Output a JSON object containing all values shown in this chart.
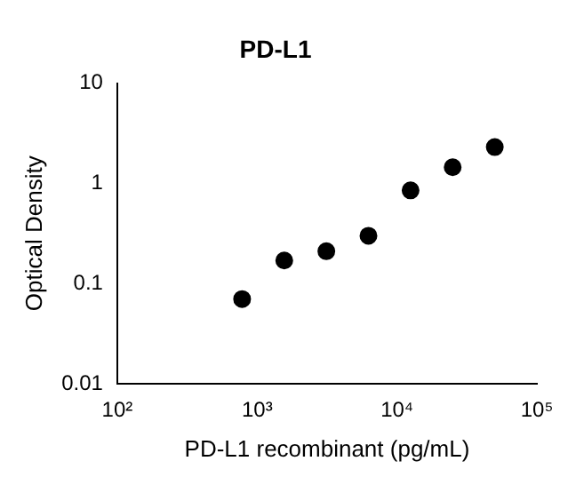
{
  "chart_data": {
    "type": "scatter",
    "title": "PD-L1",
    "xlabel": "PD-L1 recombinant (pg/mL)",
    "ylabel": "Optical Density",
    "x": [
      781,
      1563,
      3125,
      6250,
      12500,
      25000,
      50000
    ],
    "series": [
      {
        "color": "#000000",
        "values": [
          0.07,
          0.17,
          0.21,
          0.3,
          0.85,
          1.45,
          2.3
        ]
      }
    ],
    "log": "xy",
    "marker": "circle",
    "grid": false,
    "legend": false,
    "xlim": [
      100,
      100000
    ],
    "xticks": [
      {
        "value": 100,
        "label": "10²"
      },
      {
        "value": 1000,
        "label": "10³"
      },
      {
        "value": 10000,
        "label": "10⁴"
      },
      {
        "value": 100000,
        "label": "10⁵"
      }
    ],
    "ylim": [
      0.01,
      10
    ],
    "yticks": [
      0.01,
      0.1,
      1,
      10
    ]
  }
}
